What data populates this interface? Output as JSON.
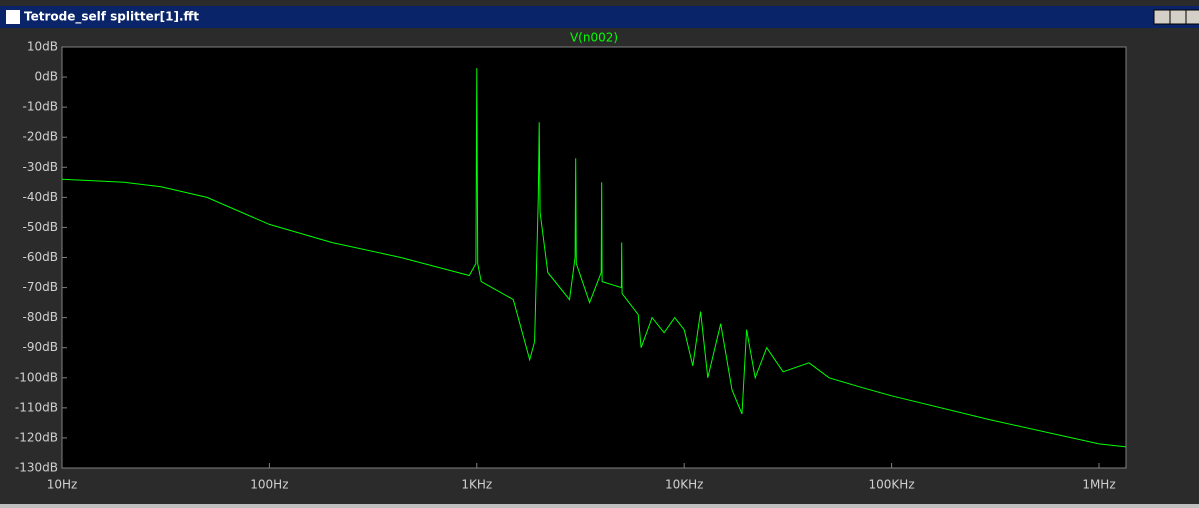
{
  "window": {
    "title": "Tetrode_self splitter[1].fft"
  },
  "chart_data": {
    "type": "line",
    "xscale": "log",
    "xlim": [
      10,
      1350000
    ],
    "ylim": [
      -130,
      10
    ],
    "xticks": [
      {
        "value": 10,
        "label": "10Hz"
      },
      {
        "value": 100,
        "label": "100Hz"
      },
      {
        "value": 1000,
        "label": "1KHz"
      },
      {
        "value": 10000,
        "label": "10KHz"
      },
      {
        "value": 100000,
        "label": "100KHz"
      },
      {
        "value": 1000000,
        "label": "1MHz"
      }
    ],
    "yticks": [
      {
        "value": 10,
        "label": "10dB"
      },
      {
        "value": 0,
        "label": "0dB"
      },
      {
        "value": -10,
        "label": "-10dB"
      },
      {
        "value": -20,
        "label": "-20dB"
      },
      {
        "value": -30,
        "label": "-30dB"
      },
      {
        "value": -40,
        "label": "-40dB"
      },
      {
        "value": -50,
        "label": "-50dB"
      },
      {
        "value": -60,
        "label": "-60dB"
      },
      {
        "value": -70,
        "label": "-70dB"
      },
      {
        "value": -80,
        "label": "-80dB"
      },
      {
        "value": -90,
        "label": "-90dB"
      },
      {
        "value": -100,
        "label": "-100dB"
      },
      {
        "value": -110,
        "label": "-110dB"
      },
      {
        "value": -120,
        "label": "-120dB"
      },
      {
        "value": -130,
        "label": "-130dB"
      }
    ],
    "x": [
      10,
      20,
      30,
      50,
      100,
      200,
      430,
      920,
      990,
      1000,
      1010,
      1050,
      1500,
      1800,
      1900,
      1980,
      2000,
      2020,
      2200,
      2800,
      2980,
      3000,
      3020,
      3500,
      3980,
      4000,
      4020,
      4980,
      5000,
      5020,
      6000,
      6200,
      7000,
      8000,
      9000,
      10000,
      11000,
      12000,
      13000,
      15000,
      17000,
      19000,
      20000,
      22000,
      25000,
      30000,
      40000,
      50000,
      70000,
      100000,
      300000,
      1000000,
      1350000
    ],
    "series": [
      {
        "name": "V(n002)",
        "color": "#00ff00",
        "values": [
          -34,
          -35,
          -36.5,
          -40,
          -49,
          -55,
          -60,
          -66,
          -62,
          3,
          -62,
          -68,
          -74,
          -94,
          -88,
          -40,
          -15,
          -45,
          -65,
          -74,
          -60,
          -27,
          -62,
          -75,
          -65,
          -35,
          -68,
          -70,
          -55,
          -72,
          -79,
          -90,
          -80,
          -85,
          -80,
          -84,
          -96,
          -78,
          -100,
          -82,
          -104,
          -112,
          -84,
          -100,
          -90,
          -98,
          -95,
          -100,
          -103,
          -106,
          -114,
          -122,
          -123
        ]
      }
    ]
  }
}
